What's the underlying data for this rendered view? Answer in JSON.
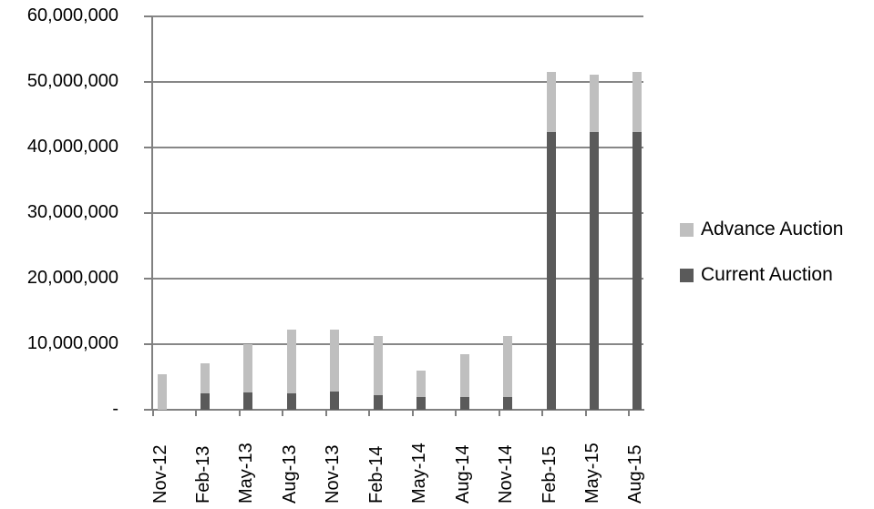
{
  "chart_data": {
    "type": "bar",
    "stacked": true,
    "title": "",
    "xlabel": "",
    "ylabel": "",
    "categories": [
      "Nov-12",
      "Feb-13",
      "May-13",
      "Aug-13",
      "Nov-13",
      "Feb-14",
      "May-14",
      "Aug-14",
      "Nov-14",
      "Feb-15",
      "May-15",
      "Aug-15"
    ],
    "series": [
      {
        "name": "Current Auction",
        "color": "#5a5a5a",
        "values": [
          0,
          2500000,
          2600000,
          2500000,
          2800000,
          2200000,
          2000000,
          2000000,
          2000000,
          42400000,
          42400000,
          42400000
        ]
      },
      {
        "name": "Advance Auction",
        "color": "#bfbfbf",
        "values": [
          5400000,
          4600000,
          7400000,
          9700000,
          9400000,
          9000000,
          4000000,
          6500000,
          9300000,
          9100000,
          8700000,
          9100000
        ]
      }
    ],
    "ylim": [
      0,
      60000000
    ],
    "ytick_interval": 10000000,
    "ytick_labels": [
      "-",
      "10,000,000",
      "20,000,000",
      "30,000,000",
      "40,000,000",
      "50,000,000",
      "60,000,000"
    ],
    "grid": true,
    "legend_position": "right",
    "legend_order": [
      "Advance Auction",
      "Current Auction"
    ]
  },
  "colors": {
    "background": "#ffffff",
    "gridline": "#878787",
    "axis": "#808080",
    "text": "#000000"
  }
}
